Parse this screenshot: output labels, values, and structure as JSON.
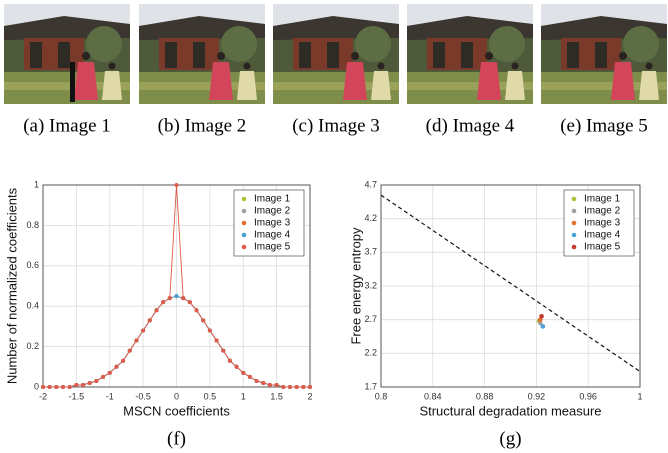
{
  "images": [
    {
      "caption": "(a) Image 1"
    },
    {
      "caption": "(b) Image 2"
    },
    {
      "caption": "(c) Image 3"
    },
    {
      "caption": "(d) Image 4"
    },
    {
      "caption": "(e) Image 5"
    }
  ],
  "chart_data": [
    {
      "type": "line",
      "panel": "(f)",
      "xlabel": "MSCN coefficients",
      "ylabel": "Number of normalized coefficients",
      "x": [
        -2,
        -1.9,
        -1.8,
        -1.7,
        -1.6,
        -1.5,
        -1.4,
        -1.3,
        -1.2,
        -1.1,
        -1,
        -0.9,
        -0.8,
        -0.7,
        -0.6,
        -0.5,
        -0.4,
        -0.3,
        -0.2,
        -0.1,
        0,
        0.1,
        0.2,
        0.3,
        0.4,
        0.5,
        0.6,
        0.7,
        0.8,
        0.9,
        1,
        1.1,
        1.2,
        1.3,
        1.4,
        1.5,
        1.6,
        1.7,
        1.8,
        1.9,
        2
      ],
      "series": [
        {
          "name": "Image 1",
          "color": "#a8c43a",
          "values": [
            0,
            0,
            0,
            0,
            0,
            0.01,
            0.01,
            0.02,
            0.03,
            0.05,
            0.07,
            0.1,
            0.13,
            0.18,
            0.23,
            0.28,
            0.33,
            0.38,
            0.42,
            0.44,
            0.45,
            0.44,
            0.42,
            0.38,
            0.33,
            0.28,
            0.23,
            0.18,
            0.13,
            0.1,
            0.07,
            0.05,
            0.03,
            0.02,
            0.01,
            0.01,
            0,
            0,
            0,
            0,
            0
          ]
        },
        {
          "name": "Image 2",
          "color": "#a0a0a0",
          "values": [
            0,
            0,
            0,
            0,
            0,
            0.01,
            0.01,
            0.02,
            0.03,
            0.05,
            0.07,
            0.1,
            0.13,
            0.18,
            0.23,
            0.28,
            0.33,
            0.38,
            0.42,
            0.44,
            0.45,
            0.44,
            0.42,
            0.38,
            0.33,
            0.28,
            0.23,
            0.18,
            0.13,
            0.1,
            0.07,
            0.05,
            0.03,
            0.02,
            0.01,
            0.01,
            0,
            0,
            0,
            0,
            0
          ]
        },
        {
          "name": "Image 3",
          "color": "#e07030",
          "values": [
            0,
            0,
            0,
            0,
            0,
            0.01,
            0.01,
            0.02,
            0.03,
            0.05,
            0.07,
            0.1,
            0.13,
            0.18,
            0.23,
            0.28,
            0.33,
            0.38,
            0.42,
            0.44,
            0.45,
            0.44,
            0.42,
            0.38,
            0.33,
            0.28,
            0.23,
            0.18,
            0.13,
            0.1,
            0.07,
            0.05,
            0.03,
            0.02,
            0.01,
            0.01,
            0,
            0,
            0,
            0,
            0
          ]
        },
        {
          "name": "Image 4",
          "color": "#4a9fd8",
          "values": [
            0,
            0,
            0,
            0,
            0,
            0.01,
            0.01,
            0.02,
            0.03,
            0.05,
            0.07,
            0.1,
            0.13,
            0.18,
            0.23,
            0.28,
            0.33,
            0.38,
            0.42,
            0.44,
            0.45,
            0.44,
            0.42,
            0.38,
            0.33,
            0.28,
            0.23,
            0.18,
            0.13,
            0.1,
            0.07,
            0.05,
            0.03,
            0.02,
            0.01,
            0.01,
            0,
            0,
            0,
            0,
            0
          ]
        },
        {
          "name": "Image 5",
          "color": "#e05a4a",
          "values": [
            0,
            0,
            0,
            0,
            0,
            0.01,
            0.01,
            0.02,
            0.03,
            0.05,
            0.07,
            0.1,
            0.13,
            0.18,
            0.23,
            0.28,
            0.33,
            0.38,
            0.42,
            0.44,
            1,
            0.44,
            0.42,
            0.38,
            0.33,
            0.28,
            0.23,
            0.18,
            0.13,
            0.1,
            0.07,
            0.05,
            0.03,
            0.02,
            0.01,
            0.01,
            0,
            0,
            0,
            0,
            0
          ]
        }
      ],
      "xlim": [
        -2,
        2
      ],
      "xticks": [
        -2,
        -1.5,
        -1,
        -0.5,
        0,
        0.5,
        1,
        1.5,
        2
      ],
      "ylim": [
        0,
        1
      ],
      "yticks": [
        0,
        0.2,
        0.4,
        0.6,
        0.8,
        1
      ],
      "grid": true,
      "legend": "top-right"
    },
    {
      "type": "scatter",
      "panel": "(g)",
      "xlabel": "Structural degradation measure",
      "ylabel": "Free energy entropy",
      "series": [
        {
          "name": "Image 1",
          "color": "#a8c43a",
          "x": [
            0.922
          ],
          "values": [
            2.68
          ]
        },
        {
          "name": "Image 2",
          "color": "#a0a0a0",
          "x": [
            0.923
          ],
          "values": [
            2.65
          ]
        },
        {
          "name": "Image 3",
          "color": "#e07030",
          "x": [
            0.923
          ],
          "values": [
            2.7
          ]
        },
        {
          "name": "Image 4",
          "color": "#4a9fd8",
          "x": [
            0.925
          ],
          "values": [
            2.6
          ]
        },
        {
          "name": "Image 5",
          "color": "#c0392b",
          "x": [
            0.924
          ],
          "values": [
            2.75
          ]
        }
      ],
      "reference_line": {
        "x": [
          0.8,
          1
        ],
        "values": [
          4.55,
          1.93
        ]
      },
      "xlim": [
        0.8,
        1
      ],
      "xticks": [
        0.8,
        0.84,
        0.88,
        0.92,
        0.96,
        1
      ],
      "ylim": [
        1.7,
        4.7
      ],
      "yticks": [
        1.7,
        2.2,
        2.7,
        3.2,
        3.7,
        4.2,
        4.7
      ],
      "grid": true,
      "legend": "top-right"
    }
  ]
}
